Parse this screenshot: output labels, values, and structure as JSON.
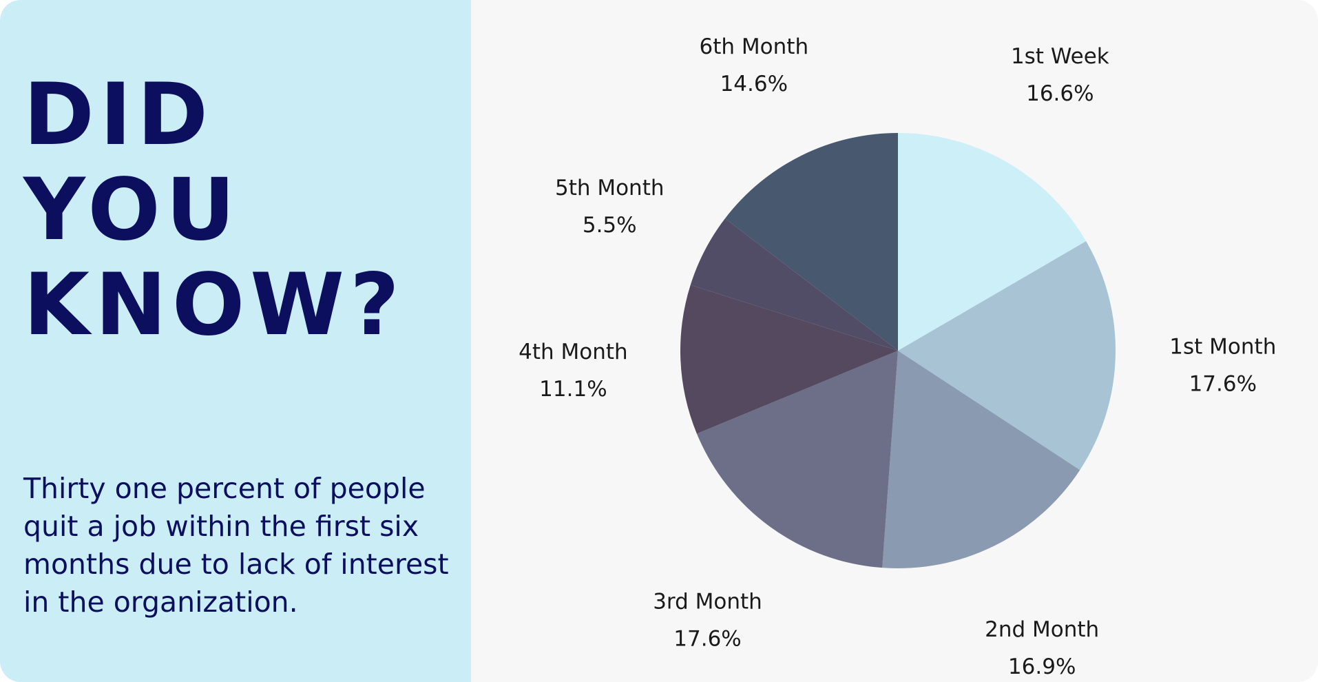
{
  "headline": {
    "lines": [
      "DID",
      "YOU",
      "KNOW?"
    ]
  },
  "body_text": "Thirty one percent of people quit a job within the first six months due to lack of interest in the organization.",
  "colors": {
    "left_panel": "#cbeef6",
    "right_panel": "#f7f7f7",
    "headline": "#0c0e5e"
  },
  "chart_data": {
    "type": "pie",
    "title": "",
    "slices": [
      {
        "label": "1st Week",
        "value": 16.6,
        "value_label": "16.6%",
        "color": "#cdeff8"
      },
      {
        "label": "1st Month",
        "value": 17.6,
        "value_label": "17.6%",
        "color": "#a8c4d4"
      },
      {
        "label": "2nd Month",
        "value": 16.9,
        "value_label": "16.9%",
        "color": "#8a9ab0"
      },
      {
        "label": "3rd Month",
        "value": 17.6,
        "value_label": "17.6%",
        "color": "#6d6f88"
      },
      {
        "label": "4th Month",
        "value": 11.1,
        "value_label": "11.1%",
        "color": "#54495f"
      },
      {
        "label": "5th Month",
        "value": 5.5,
        "value_label": "5.5%",
        "color": "#514d66"
      },
      {
        "label": "6th Month",
        "value": 14.6,
        "value_label": "14.6%",
        "color": "#48586e"
      }
    ],
    "start_angle": "12 o'clock",
    "direction": "clockwise",
    "legend": "none",
    "labels": "outside"
  }
}
